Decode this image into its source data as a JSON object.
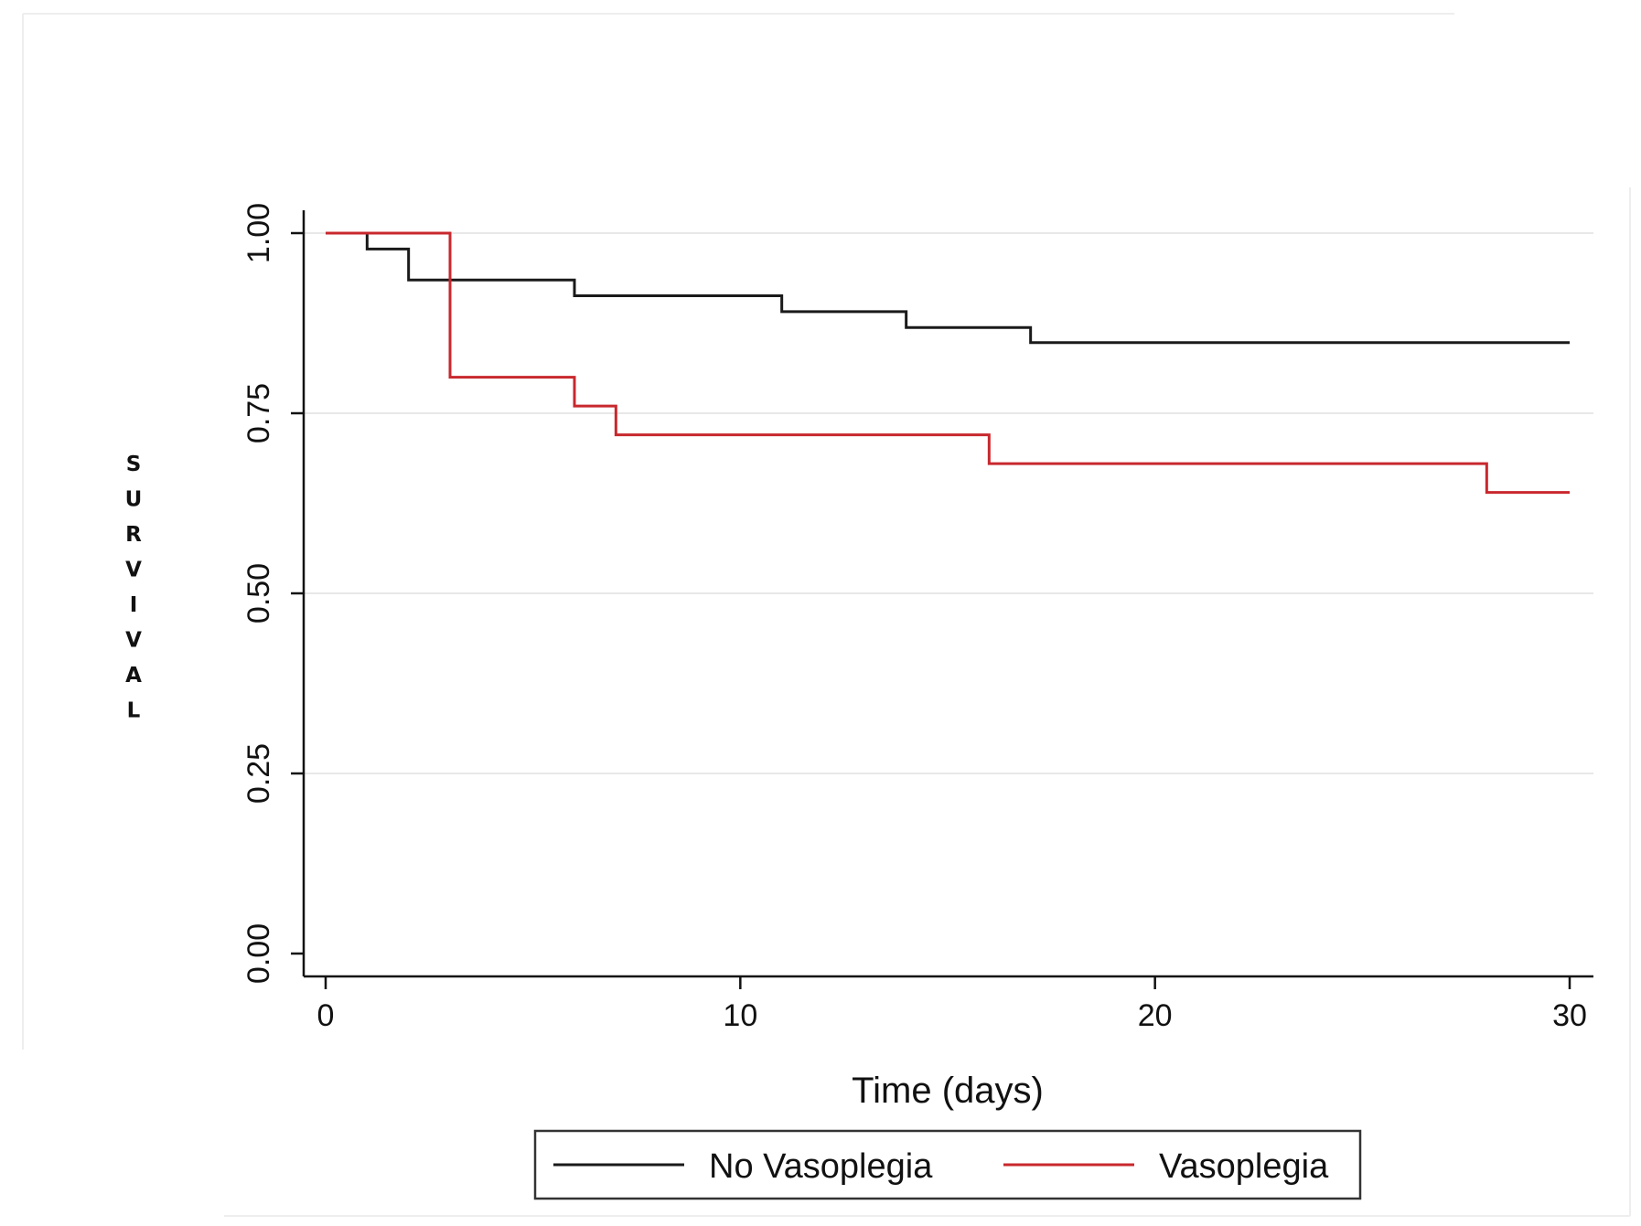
{
  "chart_data": {
    "type": "line",
    "step": true,
    "title": "",
    "xlabel": "Time (days)",
    "ylabel": "SURVIVAL",
    "xlim": [
      0,
      30
    ],
    "ylim": [
      0,
      1
    ],
    "x_ticks": [
      0,
      10,
      20,
      30
    ],
    "y_ticks": [
      "0.00",
      "0.25",
      "0.50",
      "0.75",
      "1.00"
    ],
    "grid": "horizontal",
    "legend_position": "bottom",
    "series": [
      {
        "name": "No Vasoplegia",
        "color": "#1a1a1a",
        "x": [
          0,
          1,
          2,
          6,
          11,
          14,
          17,
          30
        ],
        "y": [
          1.0,
          0.978,
          0.935,
          0.913,
          0.891,
          0.869,
          0.848,
          0.848
        ]
      },
      {
        "name": "Vasoplegia",
        "color": "#c8282d",
        "x": [
          0,
          3,
          6,
          7,
          16,
          28,
          30
        ],
        "y": [
          1.0,
          0.8,
          0.76,
          0.72,
          0.68,
          0.64,
          0.64
        ]
      }
    ]
  }
}
